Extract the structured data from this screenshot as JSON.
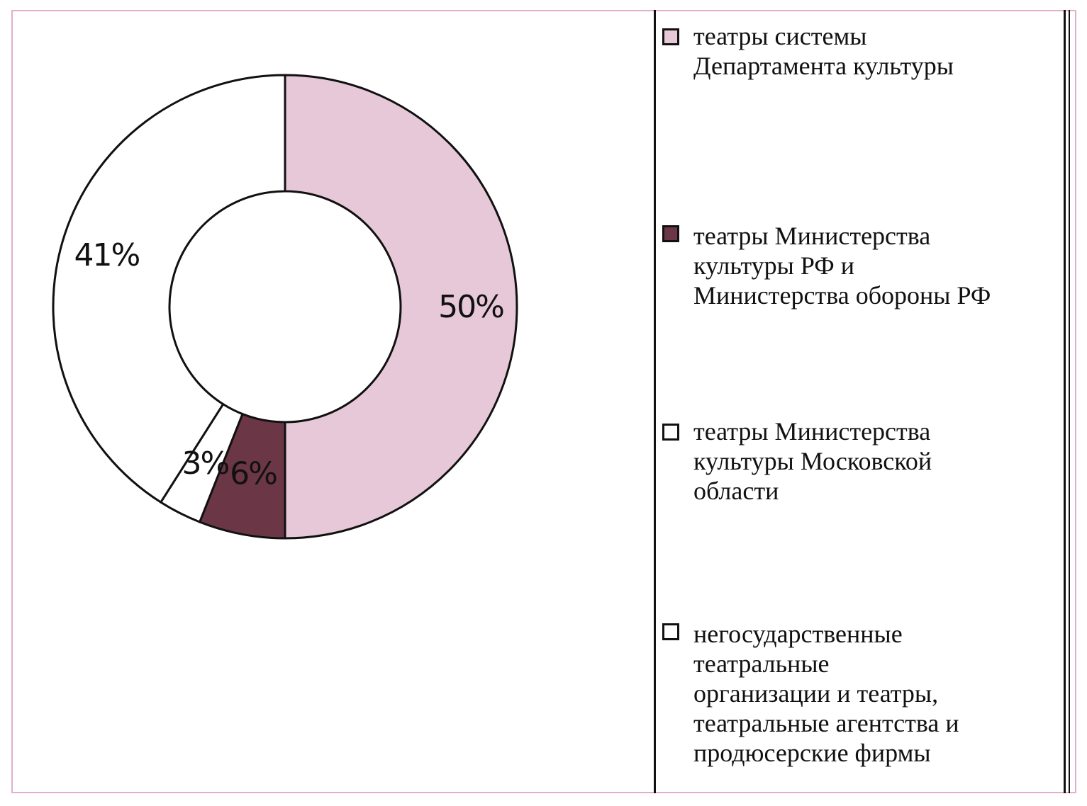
{
  "chart_data": {
    "type": "pie",
    "variant": "donut",
    "title": "",
    "slices": [
      {
        "label": "театры системы Департамента культуры",
        "value": 50,
        "value_label": "50%",
        "color": "#e7c8d8"
      },
      {
        "label": "театры Министерства культуры РФ и Министерства обороны РФ",
        "value": 6,
        "value_label": "6%",
        "color": "#6b3746"
      },
      {
        "label": "театры Министерства культуры Московской области",
        "value": 3,
        "value_label": "3%",
        "color": "#ffffff"
      },
      {
        "label": "негосударственные театральные организации и театры, театральные агентства и продюсерские фирмы",
        "value": 41,
        "value_label": "41%",
        "color": "#ffffff"
      }
    ],
    "legend_position": "right"
  },
  "legend": {
    "items": [
      {
        "text": "театры системы\nДепартамента культуры",
        "color": "#e7c8d8"
      },
      {
        "text": "театры Министерства\nкультуры РФ и\nМинистерства обороны РФ",
        "color": "#6b3746"
      },
      {
        "text": "театры Министерства\nкультуры Московской\nобласти",
        "color": "#ffffff"
      },
      {
        "text": "негосударственные\nтеатральные\nорганизации и театры,\nтеатральные агентства и\nпродюсерские фирмы",
        "color": "#ffffff"
      }
    ]
  }
}
